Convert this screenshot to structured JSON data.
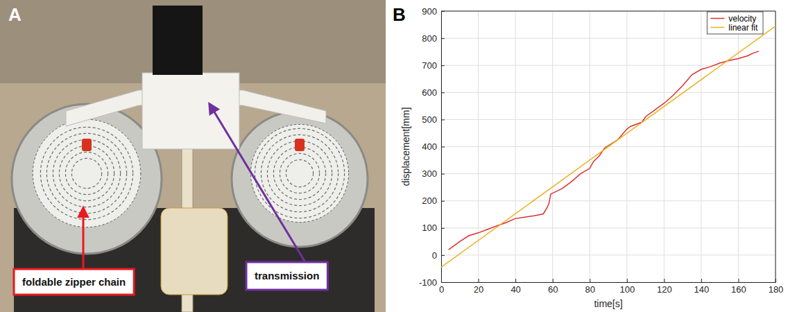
{
  "panel_a": {
    "label": "A",
    "annotations": [
      {
        "text": "foldable zipper chain",
        "color": "#e8191f"
      },
      {
        "text": "transmission",
        "color": "#7030a0"
      }
    ]
  },
  "panel_b": {
    "label": "B"
  },
  "chart_data": {
    "type": "line",
    "x_label": "time[s]",
    "y_label": "displacement[mm]",
    "xlim": [
      0,
      180
    ],
    "xticks": [
      0,
      20,
      40,
      60,
      80,
      100,
      120,
      140,
      160,
      180
    ],
    "ylim": [
      -100,
      900
    ],
    "yticks": [
      -100,
      0,
      100,
      200,
      300,
      400,
      500,
      600,
      700,
      800,
      900
    ],
    "grid": true,
    "legend": "upper right",
    "series": [
      {
        "name": "velocity",
        "color": "#d9302f",
        "type": "line",
        "line_style": "solid",
        "x": [
          4,
          10,
          15,
          20,
          25,
          30,
          35,
          40,
          45,
          50,
          55,
          57,
          58,
          59,
          65,
          70,
          75,
          80,
          82,
          85,
          88,
          95,
          100,
          102,
          108,
          110,
          115,
          120,
          125,
          130,
          135,
          140,
          145,
          150,
          155,
          160,
          165,
          168,
          171
        ],
        "values": [
          20,
          50,
          72,
          82,
          95,
          108,
          120,
          135,
          140,
          145,
          152,
          175,
          190,
          225,
          245,
          270,
          300,
          320,
          345,
          365,
          395,
          425,
          465,
          475,
          490,
          510,
          535,
          560,
          590,
          625,
          665,
          685,
          695,
          708,
          718,
          725,
          735,
          745,
          752
        ]
      },
      {
        "name": "linear fit",
        "color": "#edb120",
        "type": "line",
        "line_style": "solid",
        "x": [
          0,
          180
        ],
        "values": [
          -45,
          845
        ]
      }
    ]
  }
}
